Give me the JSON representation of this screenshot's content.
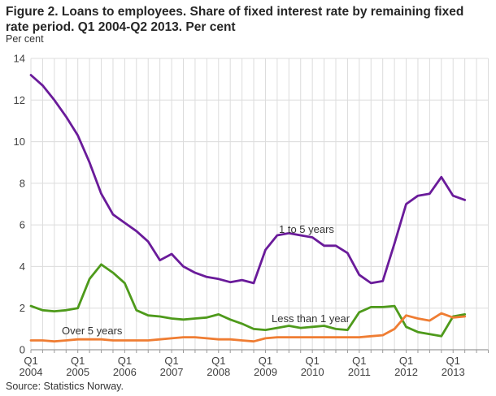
{
  "title_lines": [
    "Figure 2. Loans to employees. Share of fixed interest rate by remaining fixed",
    "rate period. Q1 2004-Q2 2013. Per cent"
  ],
  "y_axis_unit": "Per cent",
  "source": "Source: Statistics Norway.",
  "chart_data": {
    "type": "line",
    "title": "Figure 2. Loans to employees. Share of fixed interest rate by remaining fixed rate period. Q1 2004-Q2 2013. Per cent",
    "ylabel": "Per cent",
    "ylim": [
      0,
      14
    ],
    "y_ticks": [
      0,
      2,
      4,
      6,
      8,
      10,
      12,
      14
    ],
    "quarter_label": "Q1",
    "x_year_labels": [
      "2004",
      "2005",
      "2006",
      "2007",
      "2008",
      "2009",
      "2010",
      "2011",
      "2012",
      "2013"
    ],
    "x_range": "Q1 2004 - Q2 2013",
    "grid": true,
    "legend_position": "inline-labels",
    "colors": {
      "grid": "#dcdcdc",
      "axis": "#9a9a9a",
      "tick_text": "#404040"
    },
    "x_quarters": [
      "Q1 2004",
      "Q2 2004",
      "Q3 2004",
      "Q4 2004",
      "Q1 2005",
      "Q2 2005",
      "Q3 2005",
      "Q4 2005",
      "Q1 2006",
      "Q2 2006",
      "Q3 2006",
      "Q4 2006",
      "Q1 2007",
      "Q2 2007",
      "Q3 2007",
      "Q4 2007",
      "Q1 2008",
      "Q2 2008",
      "Q3 2008",
      "Q4 2008",
      "Q1 2009",
      "Q2 2009",
      "Q3 2009",
      "Q4 2009",
      "Q1 2010",
      "Q2 2010",
      "Q3 2010",
      "Q4 2010",
      "Q1 2011",
      "Q2 2011",
      "Q3 2011",
      "Q4 2011",
      "Q1 2012",
      "Q2 2012",
      "Q3 2012",
      "Q4 2012",
      "Q1 2013",
      "Q2 2013"
    ],
    "series": [
      {
        "name": "1 to 5 years",
        "color": "#6a1b9a",
        "values": [
          13.2,
          12.7,
          12.0,
          11.2,
          10.3,
          9.0,
          7.5,
          6.5,
          6.1,
          5.7,
          5.2,
          4.3,
          4.6,
          4.0,
          3.7,
          3.5,
          3.4,
          3.25,
          3.35,
          3.2,
          4.8,
          5.5,
          5.6,
          5.5,
          5.4,
          5.0,
          5.0,
          4.65,
          3.6,
          3.2,
          3.3,
          5.1,
          7.0,
          7.4,
          7.5,
          8.3,
          7.4,
          7.2
        ]
      },
      {
        "name": "Less than 1 year",
        "color": "#4e9a1b",
        "values": [
          2.1,
          1.9,
          1.85,
          1.9,
          2.0,
          3.4,
          4.1,
          3.7,
          3.2,
          1.9,
          1.65,
          1.6,
          1.5,
          1.45,
          1.5,
          1.55,
          1.7,
          1.45,
          1.25,
          1.0,
          0.95,
          1.05,
          1.15,
          1.05,
          1.1,
          1.15,
          1.0,
          0.95,
          1.8,
          2.05,
          2.05,
          2.1,
          1.1,
          0.85,
          0.75,
          0.65,
          1.6,
          1.7
        ]
      },
      {
        "name": "Over 5 years",
        "color": "#ef7d33",
        "values": [
          0.45,
          0.45,
          0.4,
          0.45,
          0.5,
          0.5,
          0.5,
          0.45,
          0.45,
          0.45,
          0.45,
          0.5,
          0.55,
          0.6,
          0.6,
          0.55,
          0.5,
          0.5,
          0.45,
          0.4,
          0.55,
          0.6,
          0.6,
          0.6,
          0.6,
          0.6,
          0.6,
          0.6,
          0.6,
          0.65,
          0.7,
          1.0,
          1.65,
          1.5,
          1.4,
          1.75,
          1.55,
          1.6
        ]
      }
    ]
  }
}
